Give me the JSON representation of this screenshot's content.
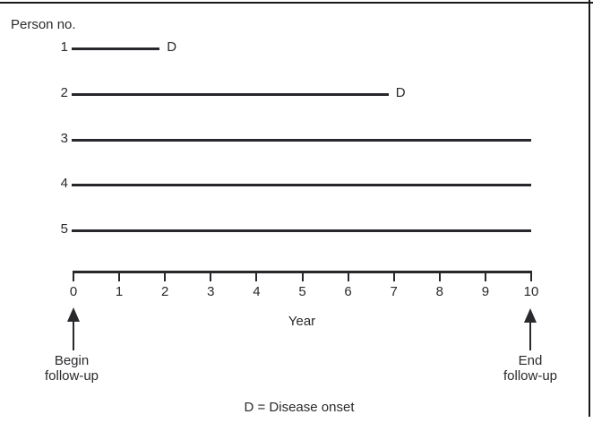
{
  "figure": {
    "column_header": "Person no.",
    "persons": [
      {
        "label": "1",
        "start_year": 0,
        "end_year": 2,
        "event": "D"
      },
      {
        "label": "2",
        "start_year": 0,
        "end_year": 7,
        "event": "D"
      },
      {
        "label": "3",
        "start_year": 0,
        "end_year": 10,
        "event": null
      },
      {
        "label": "4",
        "start_year": 0,
        "end_year": 10,
        "event": null
      },
      {
        "label": "5",
        "start_year": 0,
        "end_year": 10,
        "event": null
      }
    ],
    "axis": {
      "tick_labels": [
        "0",
        "1",
        "2",
        "3",
        "4",
        "5",
        "6",
        "7",
        "8",
        "9",
        "10"
      ],
      "label": "Year"
    },
    "begin_annotation": {
      "line1": "Begin",
      "line2": "follow-up"
    },
    "end_annotation": {
      "line1": "End",
      "line2": "follow-up"
    },
    "legend": "D = Disease onset"
  },
  "colors": {
    "ink": "#2a2a2e",
    "line": "#28282c",
    "background": "#ffffff",
    "border": "#1a1a1a"
  },
  "chart_data": {
    "type": "line",
    "subtype": "person-time follow-up timeline",
    "title": "",
    "xlabel": "Year",
    "ylabel": "Person no.",
    "xlim": [
      0,
      10
    ],
    "x_ticks": [
      0,
      1,
      2,
      3,
      4,
      5,
      6,
      7,
      8,
      9,
      10
    ],
    "grid": false,
    "series": [
      {
        "name": "Person 1",
        "follow_up_start": 0,
        "follow_up_end": 2,
        "endpoint_marker": "D"
      },
      {
        "name": "Person 2",
        "follow_up_start": 0,
        "follow_up_end": 7,
        "endpoint_marker": "D"
      },
      {
        "name": "Person 3",
        "follow_up_start": 0,
        "follow_up_end": 10,
        "endpoint_marker": null
      },
      {
        "name": "Person 4",
        "follow_up_start": 0,
        "follow_up_end": 10,
        "endpoint_marker": null
      },
      {
        "name": "Person 5",
        "follow_up_start": 0,
        "follow_up_end": 10,
        "endpoint_marker": null
      }
    ],
    "annotations": [
      {
        "text": "Begin follow-up",
        "x": 0,
        "arrow": "up"
      },
      {
        "text": "End follow-up",
        "x": 10,
        "arrow": "up"
      },
      {
        "text": "D = Disease onset",
        "role": "legend",
        "position": "bottom-center"
      }
    ]
  }
}
